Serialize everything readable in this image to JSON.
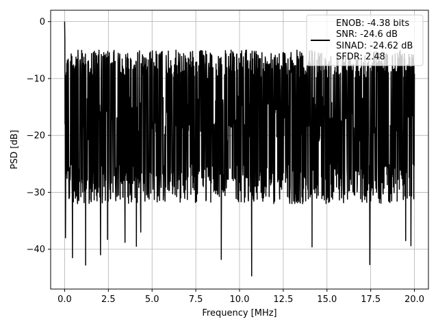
{
  "chart_data": {
    "type": "line",
    "xlabel": "Frequency [MHz]",
    "ylabel": "PSD [dB]",
    "xlim": [
      -0.8,
      20.8
    ],
    "ylim": [
      -47,
      2
    ],
    "grid": true,
    "legend_placement": "top-right",
    "x_ticks": [
      0.0,
      2.5,
      5.0,
      7.5,
      10.0,
      12.5,
      15.0,
      17.5,
      20.0
    ],
    "x_tick_labels": [
      "0.0",
      "2.5",
      "5.0",
      "7.5",
      "10.0",
      "12.5",
      "15.0",
      "17.5",
      "20.0"
    ],
    "y_ticks": [
      0,
      -10,
      -20,
      -30,
      -40
    ],
    "y_tick_labels": [
      "0",
      "−10",
      "−20",
      "−30",
      "−40"
    ],
    "series": [
      {
        "color": "#000000",
        "x_range": [
          0.0,
          20.0
        ],
        "samples": 1600,
        "peak": {
          "x": 0.0,
          "y": 0.0
        },
        "upper_envelope": [
          -5,
          -10
        ],
        "mid_level": -17,
        "lower_envelope": [
          -25,
          -32
        ],
        "deep_nulls": [
          {
            "x": 0.05,
            "y": -38
          },
          {
            "x": 0.45,
            "y": -41.5
          },
          {
            "x": 1.2,
            "y": -42.8
          },
          {
            "x": 2.05,
            "y": -41
          },
          {
            "x": 2.45,
            "y": -38.3
          },
          {
            "x": 3.45,
            "y": -38.8
          },
          {
            "x": 4.1,
            "y": -39.5
          },
          {
            "x": 4.35,
            "y": -37
          },
          {
            "x": 8.95,
            "y": -41.8
          },
          {
            "x": 10.7,
            "y": -44.7
          },
          {
            "x": 14.15,
            "y": -39.6
          },
          {
            "x": 17.45,
            "y": -42.7
          },
          {
            "x": 19.8,
            "y": -39.4
          },
          {
            "x": 19.5,
            "y": -38.5
          }
        ]
      }
    ],
    "legend": {
      "lines": [
        "ENOB: -4.38 bits",
        "SNR: -24.6 dB",
        "SINAD: -24.62 dB",
        "SFDR: 2.48"
      ]
    }
  }
}
